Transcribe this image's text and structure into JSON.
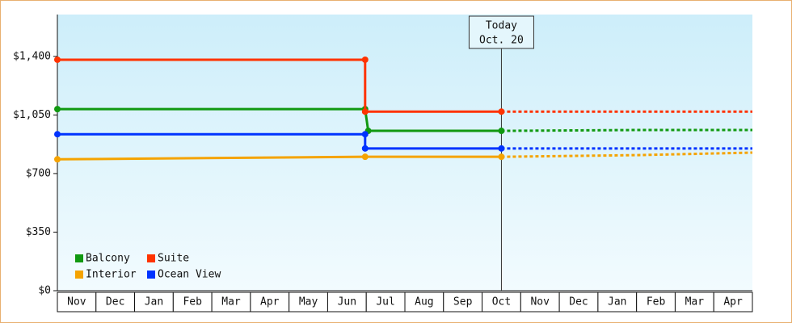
{
  "chart_data": {
    "type": "step-line",
    "categories": [
      "Nov",
      "Dec",
      "Jan",
      "Feb",
      "Mar",
      "Apr",
      "May",
      "Jun",
      "Jul",
      "Aug",
      "Sep",
      "Oct",
      "Nov",
      "Dec",
      "Jan",
      "Feb",
      "Mar",
      "Apr"
    ],
    "xlim": [
      0,
      18
    ],
    "ylim": [
      0,
      1650
    ],
    "yticks": [
      {
        "value": 0,
        "label": "$0"
      },
      {
        "value": 350,
        "label": "$350"
      },
      {
        "value": 700,
        "label": "$700"
      },
      {
        "value": 1050,
        "label": "$1,050"
      },
      {
        "value": 1400,
        "label": "$1,400"
      }
    ],
    "today": {
      "x": 11.5,
      "label": [
        "Today",
        "Oct. 20"
      ]
    },
    "series": [
      {
        "name": "Balcony",
        "color": "#119911",
        "x": [
          0,
          7.97,
          8.05,
          11.5
        ],
        "values": [
          1085,
          1085,
          955,
          955
        ],
        "forecast": {
          "x": [
            11.5,
            15,
            18
          ],
          "values": [
            955,
            960,
            960
          ]
        }
      },
      {
        "name": "Suite",
        "color": "#ff3300",
        "x": [
          0,
          7.97,
          7.97,
          11.5
        ],
        "values": [
          1380,
          1380,
          1070,
          1070
        ],
        "forecast": {
          "x": [
            11.5,
            18
          ],
          "values": [
            1070,
            1070
          ]
        }
      },
      {
        "name": "Interior",
        "color": "#f5a300",
        "x": [
          0,
          7.97,
          11.5
        ],
        "values": [
          785,
          800,
          800
        ],
        "forecast": {
          "x": [
            11.5,
            15,
            17,
            18
          ],
          "values": [
            800,
            810,
            820,
            825
          ]
        }
      },
      {
        "name": "Ocean View",
        "color": "#0033ff",
        "x": [
          0,
          7.97,
          7.97,
          11.5
        ],
        "values": [
          935,
          935,
          850,
          850
        ],
        "forecast": {
          "x": [
            11.5,
            18
          ],
          "values": [
            850,
            850
          ]
        }
      }
    ]
  }
}
